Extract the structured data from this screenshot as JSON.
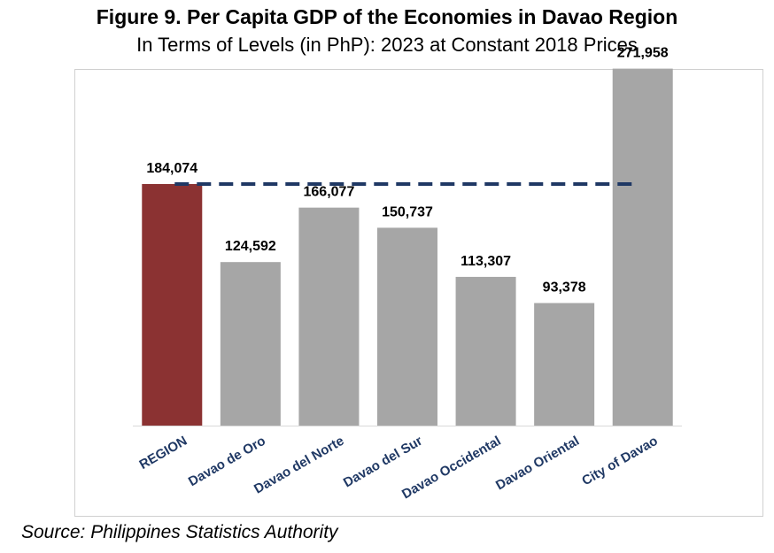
{
  "title": "Figure 9. Per Capita GDP of the Economies in Davao Region",
  "subtitle": "In Terms of Levels (in PhP): 2023 at Constant 2018 Prices",
  "source": "Source: Philippines Statistics Authority",
  "chart_data": {
    "type": "bar",
    "title": "Figure 9. Per Capita GDP of the Economies in Davao Region",
    "subtitle": "In Terms of Levels (in PhP): 2023 at Constant 2018 Prices",
    "categories": [
      "REGION",
      "Davao de Oro",
      "Davao del Norte",
      "Davao del Sur",
      "Davao Occidental",
      "Davao Oriental",
      "City of Davao"
    ],
    "values": [
      184074,
      124592,
      166077,
      150737,
      113307,
      93378,
      271958
    ],
    "data_labels": [
      "184,074",
      "124,592",
      "166,077",
      "150,737",
      "113,307",
      "93,378",
      "271,958"
    ],
    "reference_line": {
      "value": 184074,
      "style": "dashed"
    },
    "ylim": [
      0,
      300000
    ],
    "grid": false,
    "legend": "none",
    "colors": {
      "region_bar": "#8b3232",
      "province_bar": "#a6a6a6",
      "reference_line": "#1f3864",
      "category_label": "#1f3864",
      "axis": "#d9d9d9"
    }
  }
}
